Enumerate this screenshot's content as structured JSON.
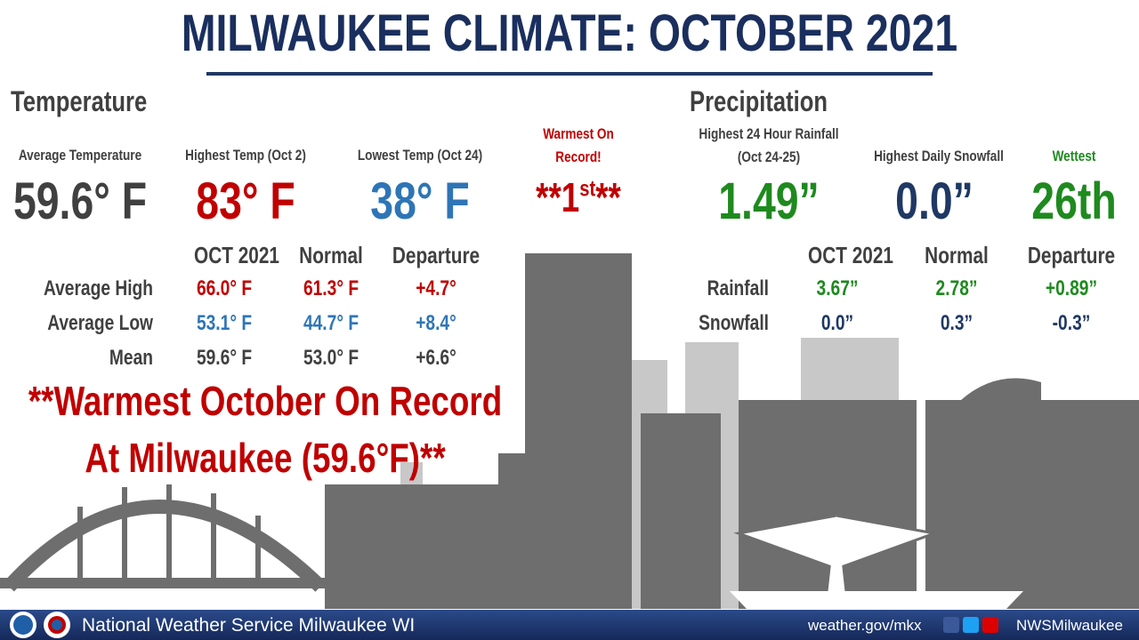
{
  "title": "MILWAUKEE CLIMATE: OCTOBER 2021",
  "temperature": {
    "heading": "Temperature",
    "stats": [
      {
        "label": "Average Temperature",
        "value": "59.6° F"
      },
      {
        "label": "Highest Temp (Oct 2)",
        "value": "83° F"
      },
      {
        "label": "Lowest Temp (Oct 24)",
        "value": "38° F"
      },
      {
        "label": "Warmest On Record!",
        "value_parts": [
          "**1",
          "st",
          "**"
        ]
      }
    ],
    "table": {
      "columns": [
        "OCT 2021",
        "Normal",
        "Departure"
      ],
      "rows": [
        [
          "Average High",
          "66.0° F",
          "61.3° F",
          "+4.7°"
        ],
        [
          "Average Low",
          "53.1° F",
          "44.7° F",
          "+8.4°"
        ],
        [
          "Mean",
          "59.6° F",
          "53.0° F",
          "+6.6°"
        ]
      ]
    },
    "note": [
      "**Warmest October On Record",
      "At Milwaukee (59.6°F)**"
    ]
  },
  "precipitation": {
    "heading": "Precipitation",
    "stats": [
      {
        "label": "Highest 24 Hour Rainfall (Oct 24-25)",
        "value": "1.49”"
      },
      {
        "label": "Highest Daily Snowfall",
        "value": "0.0”"
      },
      {
        "label": "Wettest",
        "value": "26th"
      }
    ],
    "table": {
      "columns": [
        "OCT 2021",
        "Normal",
        "Departure"
      ],
      "rows": [
        [
          "Rainfall",
          "3.67”",
          "2.78”",
          "+0.89”"
        ],
        [
          "Snowfall",
          "0.0”",
          "0.3”",
          "-0.3”"
        ]
      ]
    }
  },
  "footer": {
    "agency": "National Weather Service Milwaukee WI",
    "url": "weather.gov/mkx",
    "social": "NWSMilwaukee"
  }
}
